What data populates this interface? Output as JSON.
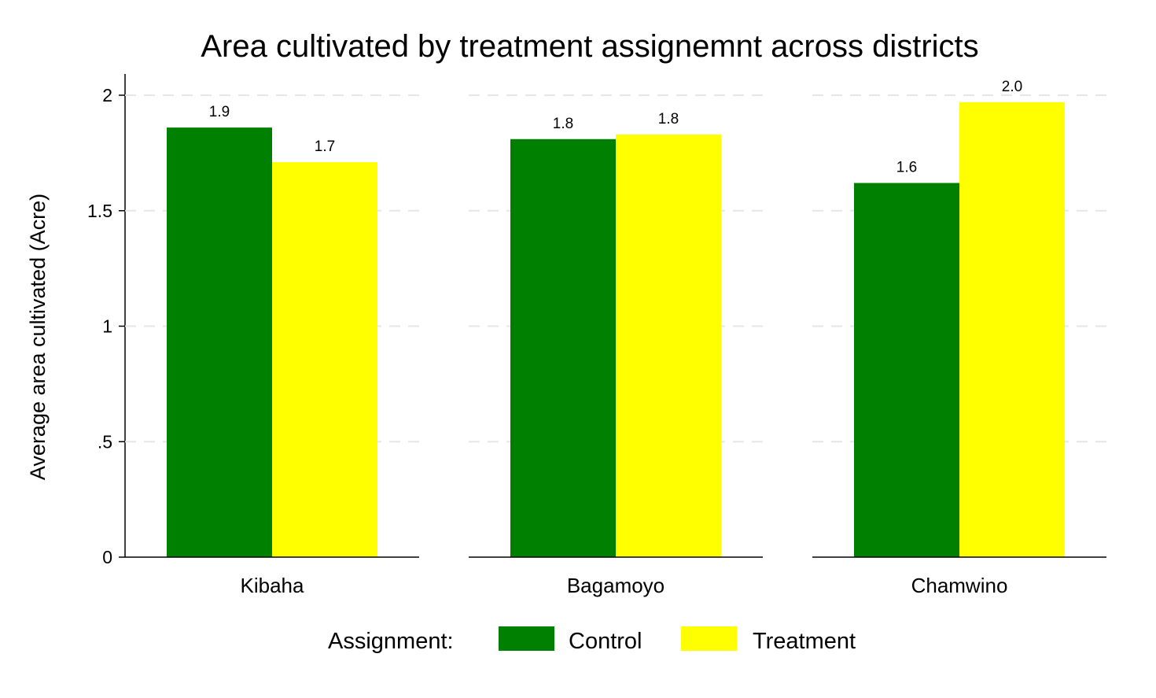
{
  "chart_data": {
    "type": "bar",
    "title": "Area cultivated by treatment assignemnt across districts",
    "ylabel": "Average area cultivated (Acre)",
    "xlabel": "",
    "ylim": [
      0,
      2.08
    ],
    "yticks": [
      0,
      0.5,
      1,
      1.5,
      2
    ],
    "ytick_labels": [
      "0",
      ".5",
      "1",
      "1.5",
      "2"
    ],
    "grid": "horizontal dashed",
    "panels": [
      "Kibaha",
      "Bagamoyo",
      "Chamwino"
    ],
    "series": [
      {
        "name": "Control",
        "color": "#008000",
        "values": [
          1.86,
          1.81,
          1.62
        ],
        "data_labels": [
          "1.9",
          "1.8",
          "1.6"
        ]
      },
      {
        "name": "Treatment",
        "color": "#ffff00",
        "values": [
          1.71,
          1.83,
          1.97
        ],
        "data_labels": [
          "1.7",
          "1.8",
          "2.0"
        ]
      }
    ],
    "legend": {
      "title": "Assignment:",
      "position": "bottom",
      "entries": [
        "Control",
        "Treatment"
      ]
    }
  }
}
